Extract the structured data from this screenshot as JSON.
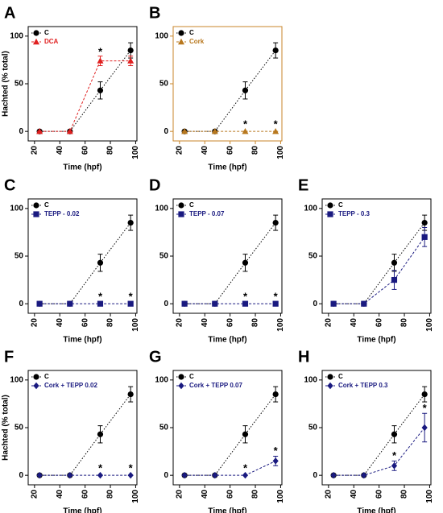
{
  "chart_data": [
    {
      "type": "line",
      "label": "A",
      "x_label": "Time (hpf)",
      "y_label": "Hachted (% total)",
      "axis_color": "#000000",
      "x": [
        24,
        48,
        72,
        96
      ],
      "xlim": [
        15,
        101
      ],
      "xticks": [
        20,
        40,
        60,
        80,
        100
      ],
      "ylim": [
        -10,
        110
      ],
      "yticks": [
        0,
        50,
        100
      ],
      "series": [
        {
          "name": "C",
          "color": "#000000",
          "marker": "circle",
          "dash": "dotted",
          "values": [
            0,
            0,
            43,
            85
          ],
          "errors": [
            0,
            0,
            9,
            8
          ]
        },
        {
          "name": "DCA",
          "color": "#e02020",
          "marker": "triangle",
          "dash": "dashed",
          "values": [
            0,
            0,
            74,
            74
          ],
          "errors": [
            0,
            0,
            5,
            5
          ]
        }
      ],
      "annotations": [
        {
          "text": "*",
          "x": 72,
          "y": 83
        }
      ]
    },
    {
      "type": "line",
      "label": "B",
      "x_label": "Time (hpf)",
      "axis_color": "#c8862a",
      "x": [
        24,
        48,
        72,
        96
      ],
      "xlim": [
        15,
        101
      ],
      "xticks": [
        20,
        40,
        60,
        80,
        100
      ],
      "ylim": [
        -10,
        110
      ],
      "yticks": [
        0,
        50,
        100
      ],
      "series": [
        {
          "name": "C",
          "color": "#000000",
          "marker": "circle",
          "dash": "dotted",
          "values": [
            0,
            0,
            43,
            85
          ],
          "errors": [
            0,
            0,
            9,
            8
          ]
        },
        {
          "name": "Cork",
          "color": "#b8781e",
          "marker": "triangle",
          "dash": "dashed",
          "values": [
            0,
            0,
            0,
            0
          ],
          "errors": [
            0,
            0,
            0,
            0
          ]
        }
      ],
      "annotations": [
        {
          "text": "*",
          "x": 72,
          "y": 7
        },
        {
          "text": "*",
          "x": 96,
          "y": 7
        }
      ]
    },
    {
      "type": "line",
      "label": "C",
      "x_label": "Time (hpf)",
      "axis_color": "#000000",
      "x": [
        24,
        48,
        72,
        96
      ],
      "xlim": [
        15,
        101
      ],
      "xticks": [
        20,
        40,
        60,
        80,
        100
      ],
      "ylim": [
        -10,
        110
      ],
      "yticks": [
        0,
        50,
        100
      ],
      "series": [
        {
          "name": "C",
          "color": "#000000",
          "marker": "circle",
          "dash": "dotted",
          "values": [
            0,
            0,
            43,
            85
          ],
          "errors": [
            0,
            0,
            9,
            8
          ]
        },
        {
          "name": "TEPP - 0.02",
          "color": "#1a1a80",
          "marker": "square",
          "dash": "dashed",
          "values": [
            0,
            0,
            0,
            0
          ],
          "errors": [
            0,
            0,
            0,
            0
          ]
        }
      ],
      "annotations": [
        {
          "text": "*",
          "x": 72,
          "y": 7
        },
        {
          "text": "*",
          "x": 96,
          "y": 7
        }
      ]
    },
    {
      "type": "line",
      "label": "D",
      "x_label": "Time (hpf)",
      "axis_color": "#000000",
      "x": [
        24,
        48,
        72,
        96
      ],
      "xlim": [
        15,
        101
      ],
      "xticks": [
        20,
        40,
        60,
        80,
        100
      ],
      "ylim": [
        -10,
        110
      ],
      "yticks": [
        0,
        50,
        100
      ],
      "series": [
        {
          "name": "C",
          "color": "#000000",
          "marker": "circle",
          "dash": "dotted",
          "values": [
            0,
            0,
            43,
            85
          ],
          "errors": [
            0,
            0,
            9,
            8
          ]
        },
        {
          "name": "TEPP - 0.07",
          "color": "#1a1a80",
          "marker": "square",
          "dash": "dashed",
          "values": [
            0,
            0,
            0,
            0
          ],
          "errors": [
            0,
            0,
            0,
            0
          ]
        }
      ],
      "annotations": [
        {
          "text": "*",
          "x": 72,
          "y": 7
        },
        {
          "text": "*",
          "x": 96,
          "y": 7
        }
      ]
    },
    {
      "type": "line",
      "label": "E",
      "x_label": "Time (hpf)",
      "axis_color": "#000000",
      "x": [
        24,
        48,
        72,
        96
      ],
      "xlim": [
        15,
        101
      ],
      "xticks": [
        20,
        40,
        60,
        80,
        100
      ],
      "ylim": [
        -10,
        110
      ],
      "yticks": [
        0,
        50,
        100
      ],
      "series": [
        {
          "name": "C",
          "color": "#000000",
          "marker": "circle",
          "dash": "dotted",
          "values": [
            0,
            0,
            43,
            85
          ],
          "errors": [
            0,
            0,
            9,
            8
          ]
        },
        {
          "name": "TEPP - 0.3",
          "color": "#1a1a80",
          "marker": "square",
          "dash": "dashed",
          "values": [
            0,
            0,
            25,
            70
          ],
          "errors": [
            0,
            0,
            10,
            10
          ]
        }
      ],
      "annotations": []
    },
    {
      "type": "line",
      "label": "F",
      "x_label": "Time (hpf)",
      "y_label": "Hachted (% total)",
      "axis_color": "#000000",
      "x": [
        24,
        48,
        72,
        96
      ],
      "xlim": [
        15,
        101
      ],
      "xticks": [
        20,
        40,
        60,
        80,
        100
      ],
      "ylim": [
        -10,
        110
      ],
      "yticks": [
        0,
        50,
        100
      ],
      "series": [
        {
          "name": "C",
          "color": "#000000",
          "marker": "circle",
          "dash": "dotted",
          "values": [
            0,
            0,
            43,
            85
          ],
          "errors": [
            0,
            0,
            9,
            8
          ]
        },
        {
          "name": "Cork + TEPP 0.02",
          "color": "#1a1a80",
          "marker": "diamond",
          "dash": "dashed",
          "values": [
            0,
            0,
            0,
            0
          ],
          "errors": [
            0,
            0,
            0,
            0
          ]
        }
      ],
      "annotations": [
        {
          "text": "*",
          "x": 72,
          "y": 7
        },
        {
          "text": "*",
          "x": 96,
          "y": 7
        }
      ]
    },
    {
      "type": "line",
      "label": "G",
      "x_label": "Time (hpf)",
      "axis_color": "#000000",
      "x": [
        24,
        48,
        72,
        96
      ],
      "xlim": [
        15,
        101
      ],
      "xticks": [
        20,
        40,
        60,
        80,
        100
      ],
      "ylim": [
        -10,
        110
      ],
      "yticks": [
        0,
        50,
        100
      ],
      "series": [
        {
          "name": "C",
          "color": "#000000",
          "marker": "circle",
          "dash": "dotted",
          "values": [
            0,
            0,
            43,
            85
          ],
          "errors": [
            0,
            0,
            9,
            8
          ]
        },
        {
          "name": "Cork + TEPP 0.07",
          "color": "#1a1a80",
          "marker": "diamond",
          "dash": "dashed",
          "values": [
            0,
            0,
            0,
            15
          ],
          "errors": [
            0,
            0,
            0,
            5
          ]
        }
      ],
      "annotations": [
        {
          "text": "*",
          "x": 72,
          "y": 7
        },
        {
          "text": "*",
          "x": 96,
          "y": 25
        }
      ]
    },
    {
      "type": "line",
      "label": "H",
      "x_label": "Time (hpf)",
      "axis_color": "#000000",
      "x": [
        24,
        48,
        72,
        96
      ],
      "xlim": [
        15,
        101
      ],
      "xticks": [
        20,
        40,
        60,
        80,
        100
      ],
      "ylim": [
        -10,
        110
      ],
      "yticks": [
        0,
        50,
        100
      ],
      "series": [
        {
          "name": "C",
          "color": "#000000",
          "marker": "circle",
          "dash": "dotted",
          "values": [
            0,
            0,
            43,
            85
          ],
          "errors": [
            0,
            0,
            9,
            8
          ]
        },
        {
          "name": "Cork + TEPP 0.3",
          "color": "#1a1a80",
          "marker": "diamond",
          "dash": "dashed",
          "values": [
            0,
            0,
            10,
            50
          ],
          "errors": [
            0,
            0,
            5,
            15
          ]
        }
      ],
      "annotations": [
        {
          "text": "*",
          "x": 72,
          "y": 20
        },
        {
          "text": "*",
          "x": 96,
          "y": 70
        }
      ]
    }
  ]
}
